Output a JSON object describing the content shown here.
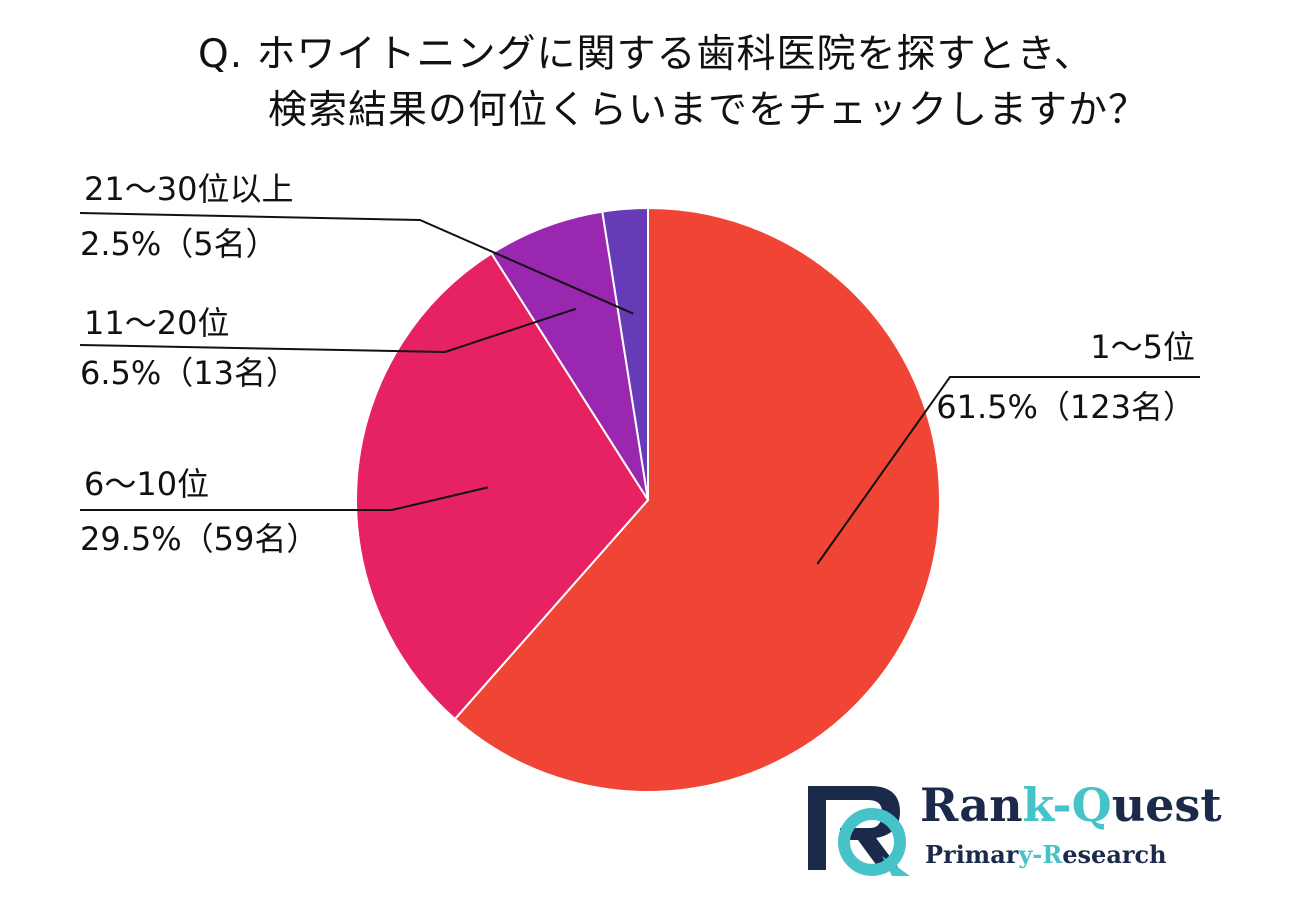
{
  "title": {
    "line1": "Q.  ホワイトニングに関する歯科医院を探すとき、",
    "line2": "検索結果の何位くらいまでをチェックしますか？"
  },
  "chart_data": {
    "type": "pie",
    "categories": [
      "1〜5位",
      "6〜10位",
      "11〜20位",
      "21〜30位以上"
    ],
    "values": [
      61.5,
      29.5,
      6.5,
      2.5
    ],
    "counts": [
      123,
      59,
      13,
      5
    ],
    "value_labels": [
      "61.5%（123名）",
      "29.5%（59名）",
      "6.5%（13名）",
      "2.5%（5名）"
    ],
    "colors": [
      "#f04435",
      "#e62263",
      "#9a27b0",
      "#673ab7"
    ],
    "start_angle": "12 o'clock",
    "direction": "clockwise",
    "legend": "none"
  },
  "logo": {
    "brand_a": "Ran",
    "brand_b": "k-Q",
    "brand_c": "uest",
    "sub_a": "Primar",
    "sub_b": "y-R",
    "sub_c": "esearch",
    "colors": {
      "navy": "#1b2a4a",
      "teal": "#46c3c8"
    }
  }
}
